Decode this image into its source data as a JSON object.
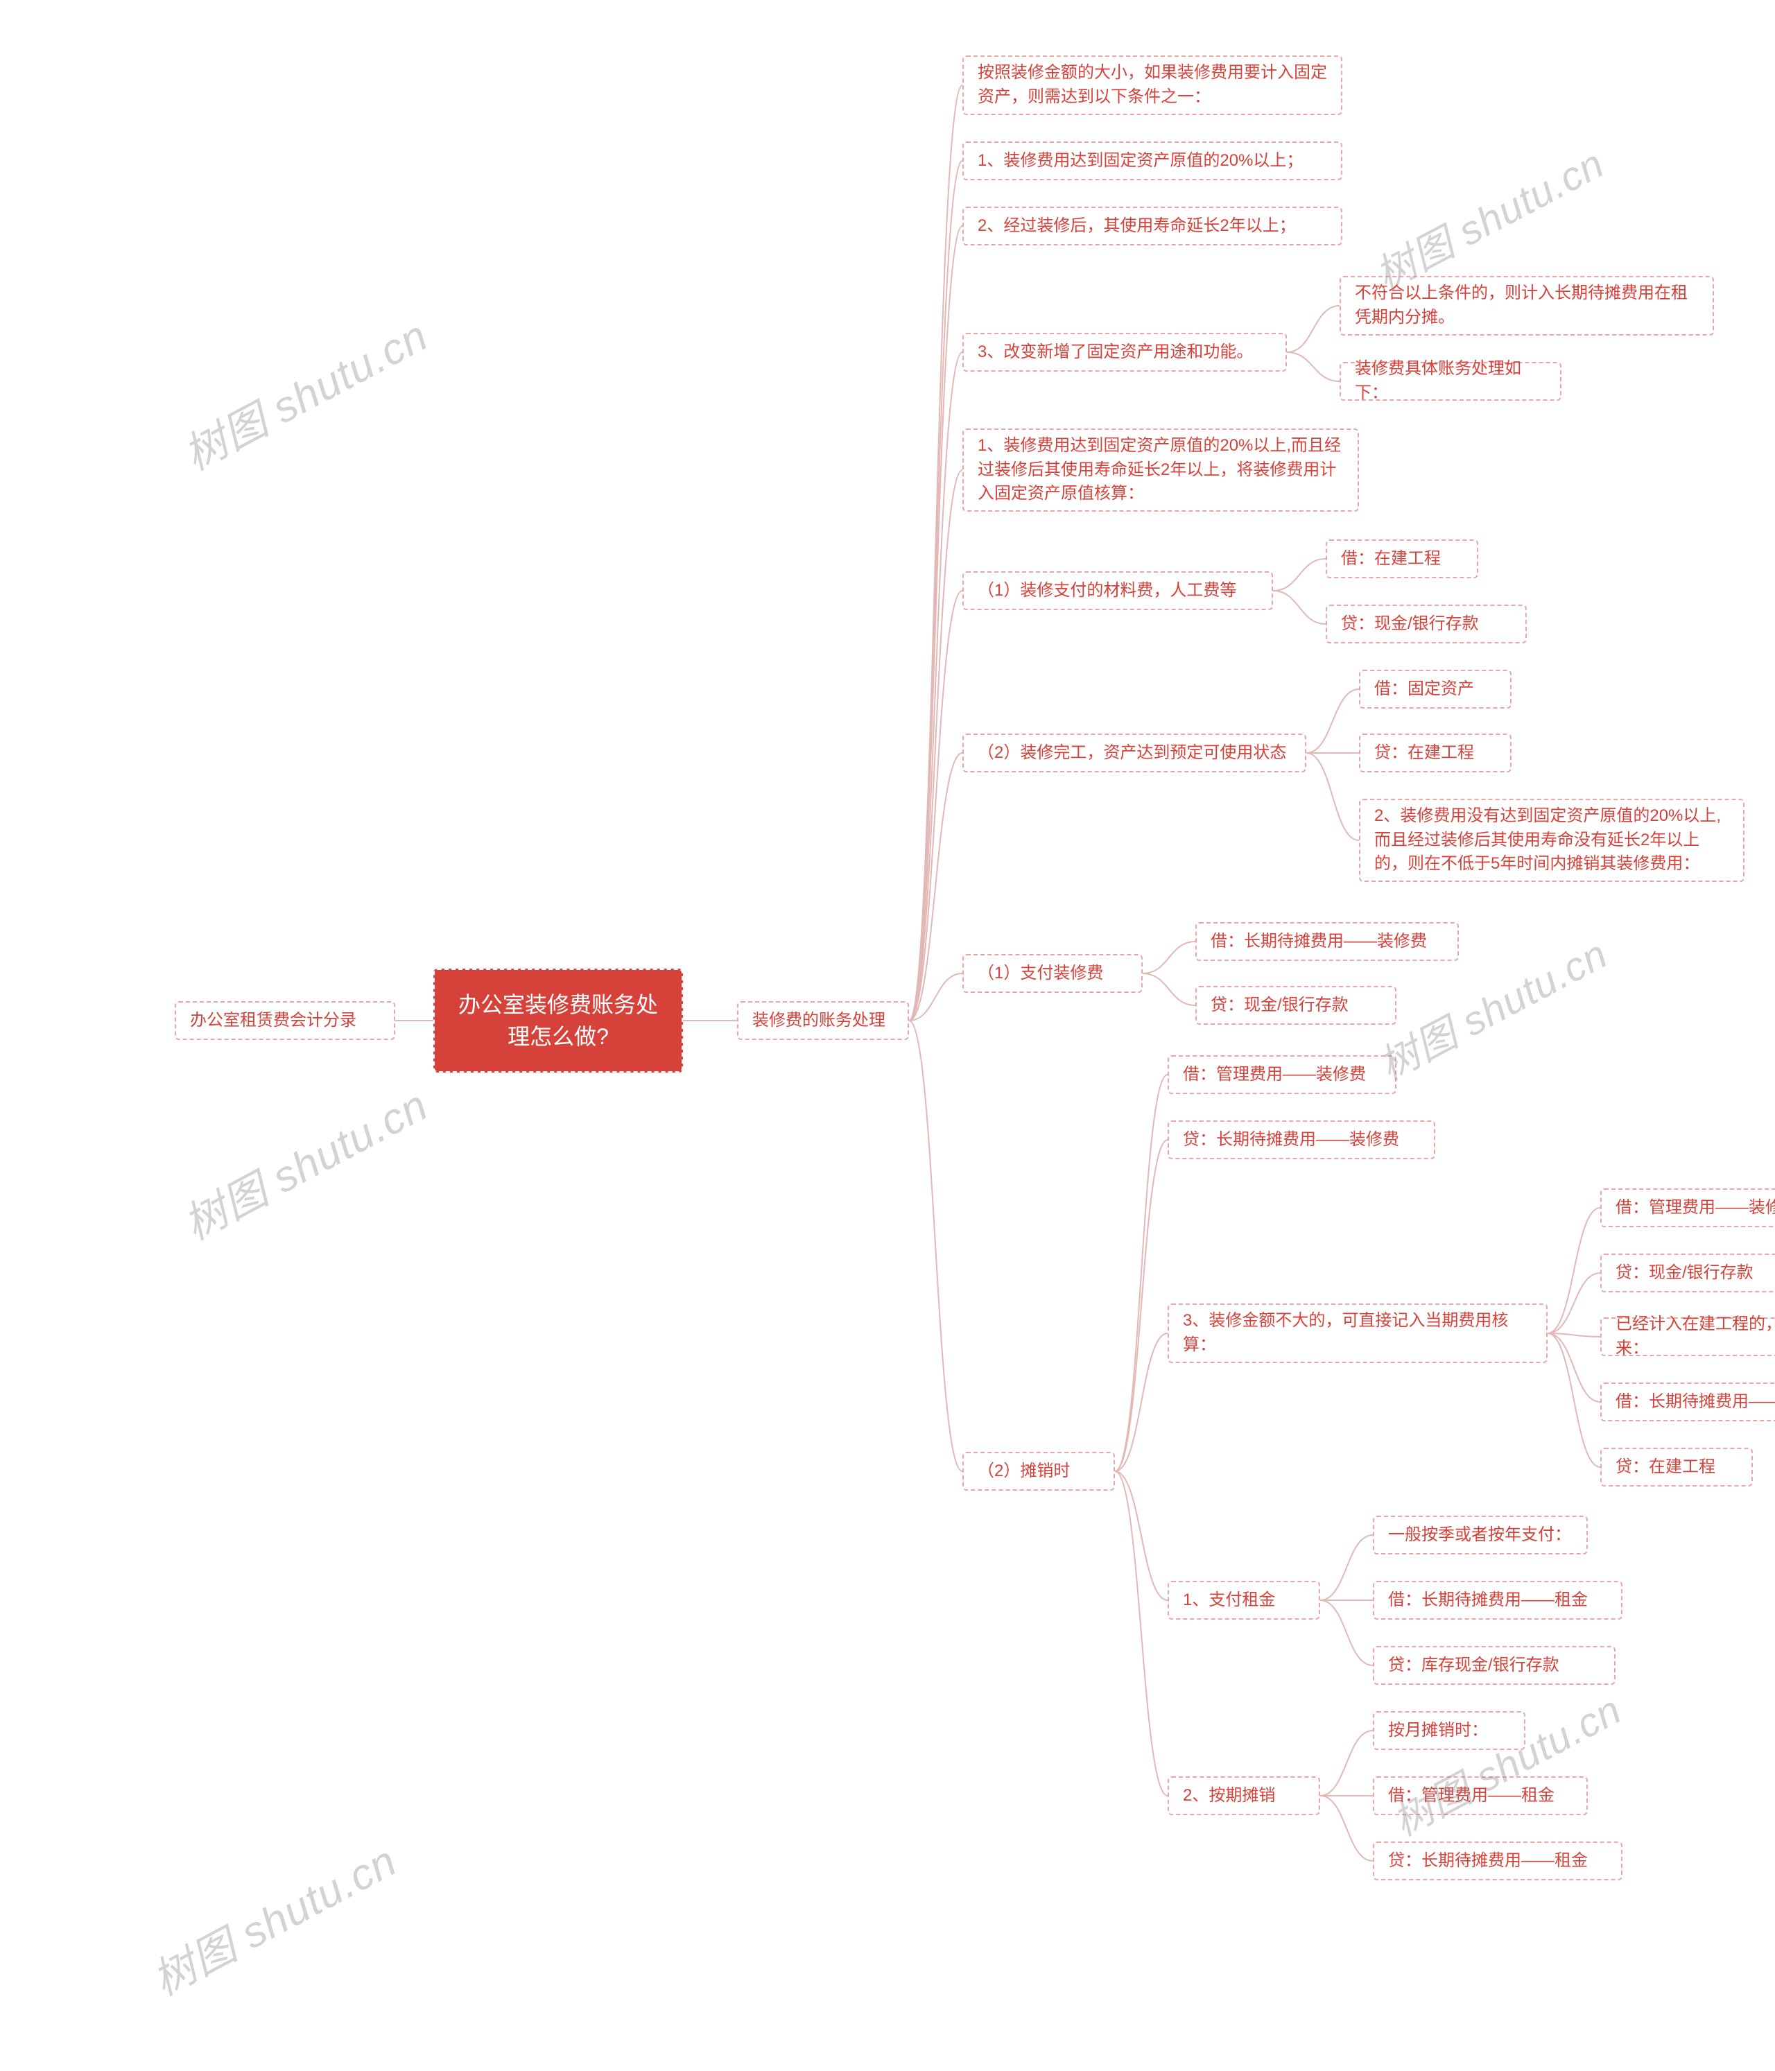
{
  "colors": {
    "root_bg": "#d6423a",
    "root_text": "#ffffff",
    "root_border": "#ffffff",
    "node_bg": "#ffffff",
    "node_text": "#d6423a",
    "node_border": "#e8a7a3",
    "connector": "#e2b8b6",
    "background": "#ffffff",
    "watermark": "rgba(140,140,140,0.38)"
  },
  "typography": {
    "root_fontsize": 32,
    "node_fontsize": 24,
    "watermark_fontsize": 62
  },
  "watermark_text": "树图 shutu.cn",
  "root": "办公室装修费账务处理怎么做?",
  "left1": "办公室租赁费会计分录",
  "right1": "装修费的账务处理",
  "c": {
    "n1": "按照装修金额的大小，如果装修费用要计入固定资产，则需达到以下条件之一：",
    "n2": "1、装修费用达到固定资产原值的20%以上；",
    "n3": "2、经过装修后，其使用寿命延长2年以上；",
    "n4": "3、改变新增了固定资产用途和功能。",
    "n4a": "不符合以上条件的，则计入长期待摊费用在租凭期内分摊。",
    "n4b": "装修费具体账务处理如下：",
    "n5": "1、装修费用达到固定资产原值的20%以上,而且经过装修后其使用寿命延长2年以上，将装修费用计入固定资产原值核算：",
    "n6": "（1）装修支付的材料费，人工费等",
    "n6a": "借：在建工程",
    "n6b": "贷：现金/银行存款",
    "n7": "（2）装修完工，资产达到预定可使用状态",
    "n7a": "借：固定资产",
    "n7b": "贷：在建工程",
    "n7c": "2、装修费用没有达到固定资产原值的20%以上,而且经过装修后其使用寿命没有延长2年以上的，则在不低于5年时间内摊销其装修费用：",
    "n8": "（1）支付装修费",
    "n8a": "借：长期待摊费用——装修费",
    "n8b": "贷：现金/银行存款",
    "n9": "（2）摊销时",
    "n9a": "借：管理费用——装修费",
    "n9b": "贷：长期待摊费用——装修费",
    "n9c": "3、装修金额不大的，可直接记入当期费用核算：",
    "n9c1": "借：管理费用——装修费",
    "n9c2": "贷：现金/银行存款",
    "n9c3": "已经计入在建工程的，则将费用结转出来：",
    "n9c4": "借：长期待摊费用——装修费",
    "n9c5": "贷：在建工程",
    "n9d": "1、支付租金",
    "n9d1": "一般按季或者按年支付：",
    "n9d2": "借：长期待摊费用——租金",
    "n9d3": "贷：库存现金/银行存款",
    "n9e": "2、按期摊销",
    "n9e1": "按月摊销时：",
    "n9e2": "借：管理费用——租金",
    "n9e3": "贷：长期待摊费用——租金"
  }
}
